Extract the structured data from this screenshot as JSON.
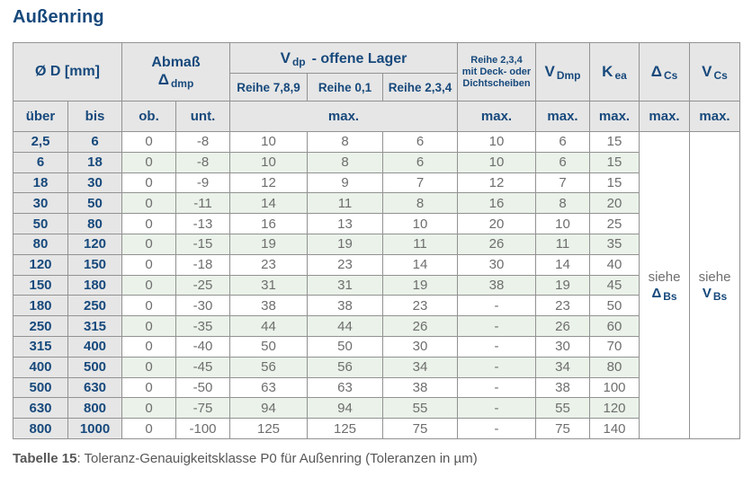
{
  "page": {
    "title": "Außenring",
    "caption": {
      "label": "Tabelle 15",
      "text": ": Toleranz-Genauigkeitsklasse P0 für Außenring (Toleranzen in µm)"
    }
  },
  "colors": {
    "accent_blue": "#17497c",
    "header_bg": "#e6e6e6",
    "row_band_green": "#eaf2e9",
    "row_white": "#ffffff",
    "grid_border": "#929292",
    "value_text": "#6e6e6e",
    "caption_text": "#575757"
  },
  "table": {
    "header": {
      "diameter_label": "Ø D  [mm]",
      "abmass_label": "Abmaß",
      "abmass_symbol": {
        "main": "Δ",
        "sub": "dmp"
      },
      "vdp_title": {
        "main": "V",
        "sub": "dp",
        "rest": "-  offene Lager"
      },
      "reihe_789": "Reihe 7,8,9",
      "reihe_01": "Reihe 0,1",
      "reihe_234": "Reihe 2,3,4",
      "deck": {
        "line1": "Reihe 2,3,4",
        "line2": "mit Deck- oder",
        "line3": "Dichtscheiben"
      },
      "vdmp": {
        "main": "V",
        "sub": "Dmp"
      },
      "kea": {
        "main": "K",
        "sub": "ea"
      },
      "delta_cs": {
        "main": "Δ",
        "sub": "Cs"
      },
      "v_cs": {
        "main": "V",
        "sub": "Cs"
      },
      "ueber": "über",
      "bis": "bis",
      "ob": "ob.",
      "unt": "unt.",
      "max": "max."
    },
    "see_references": {
      "delta_bs": {
        "word": "siehe",
        "main": "Δ",
        "sub": "Bs"
      },
      "v_bs": {
        "word": "siehe",
        "main": "V",
        "sub": "Bs"
      }
    },
    "rows": [
      {
        "ueber": "2,5",
        "bis": "6",
        "ob": "0",
        "unt": "-8",
        "reihe789": "10",
        "reihe01": "8",
        "reihe234": "6",
        "deck": "10",
        "vdmp": "6",
        "kea": "15"
      },
      {
        "ueber": "6",
        "bis": "18",
        "ob": "0",
        "unt": "-8",
        "reihe789": "10",
        "reihe01": "8",
        "reihe234": "6",
        "deck": "10",
        "vdmp": "6",
        "kea": "15"
      },
      {
        "ueber": "18",
        "bis": "30",
        "ob": "0",
        "unt": "-9",
        "reihe789": "12",
        "reihe01": "9",
        "reihe234": "7",
        "deck": "12",
        "vdmp": "7",
        "kea": "15"
      },
      {
        "ueber": "30",
        "bis": "50",
        "ob": "0",
        "unt": "-11",
        "reihe789": "14",
        "reihe01": "11",
        "reihe234": "8",
        "deck": "16",
        "vdmp": "8",
        "kea": "20"
      },
      {
        "ueber": "50",
        "bis": "80",
        "ob": "0",
        "unt": "-13",
        "reihe789": "16",
        "reihe01": "13",
        "reihe234": "10",
        "deck": "20",
        "vdmp": "10",
        "kea": "25"
      },
      {
        "ueber": "80",
        "bis": "120",
        "ob": "0",
        "unt": "-15",
        "reihe789": "19",
        "reihe01": "19",
        "reihe234": "11",
        "deck": "26",
        "vdmp": "11",
        "kea": "35"
      },
      {
        "ueber": "120",
        "bis": "150",
        "ob": "0",
        "unt": "-18",
        "reihe789": "23",
        "reihe01": "23",
        "reihe234": "14",
        "deck": "30",
        "vdmp": "14",
        "kea": "40"
      },
      {
        "ueber": "150",
        "bis": "180",
        "ob": "0",
        "unt": "-25",
        "reihe789": "31",
        "reihe01": "31",
        "reihe234": "19",
        "deck": "38",
        "vdmp": "19",
        "kea": "45"
      },
      {
        "ueber": "180",
        "bis": "250",
        "ob": "0",
        "unt": "-30",
        "reihe789": "38",
        "reihe01": "38",
        "reihe234": "23",
        "deck": "-",
        "vdmp": "23",
        "kea": "50"
      },
      {
        "ueber": "250",
        "bis": "315",
        "ob": "0",
        "unt": "-35",
        "reihe789": "44",
        "reihe01": "44",
        "reihe234": "26",
        "deck": "-",
        "vdmp": "26",
        "kea": "60"
      },
      {
        "ueber": "315",
        "bis": "400",
        "ob": "0",
        "unt": "-40",
        "reihe789": "50",
        "reihe01": "50",
        "reihe234": "30",
        "deck": "-",
        "vdmp": "30",
        "kea": "70"
      },
      {
        "ueber": "400",
        "bis": "500",
        "ob": "0",
        "unt": "-45",
        "reihe789": "56",
        "reihe01": "56",
        "reihe234": "34",
        "deck": "-",
        "vdmp": "34",
        "kea": "80"
      },
      {
        "ueber": "500",
        "bis": "630",
        "ob": "0",
        "unt": "-50",
        "reihe789": "63",
        "reihe01": "63",
        "reihe234": "38",
        "deck": "-",
        "vdmp": "38",
        "kea": "100"
      },
      {
        "ueber": "630",
        "bis": "800",
        "ob": "0",
        "unt": "-75",
        "reihe789": "94",
        "reihe01": "94",
        "reihe234": "55",
        "deck": "-",
        "vdmp": "55",
        "kea": "120"
      },
      {
        "ueber": "800",
        "bis": "1000",
        "ob": "0",
        "unt": "-100",
        "reihe789": "125",
        "reihe01": "125",
        "reihe234": "75",
        "deck": "-",
        "vdmp": "75",
        "kea": "140"
      }
    ]
  }
}
